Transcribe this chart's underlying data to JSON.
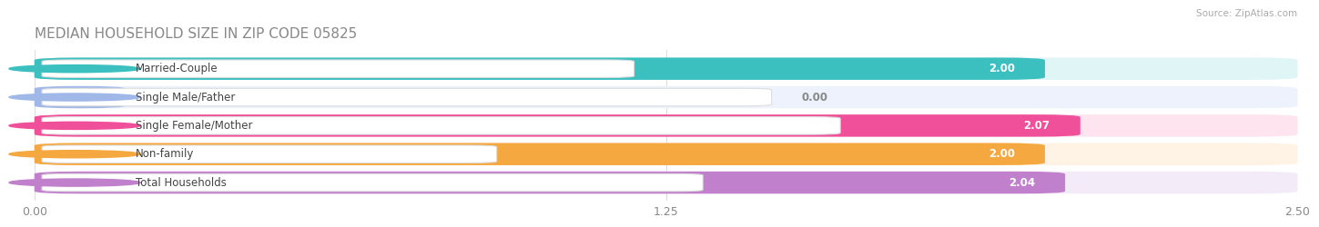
{
  "title": "MEDIAN HOUSEHOLD SIZE IN ZIP CODE 05825",
  "source": "Source: ZipAtlas.com",
  "categories": [
    "Married-Couple",
    "Single Male/Father",
    "Single Female/Mother",
    "Non-family",
    "Total Households"
  ],
  "values": [
    2.0,
    0.0,
    2.07,
    2.0,
    2.04
  ],
  "value_labels": [
    "2.00",
    "0.00",
    "2.07",
    "2.00",
    "2.04"
  ],
  "bar_colors": [
    "#3bbfbf",
    "#a0b8e8",
    "#f0509a",
    "#f5a840",
    "#c080cc"
  ],
  "bar_bg_colors": [
    "#e0f5f5",
    "#edf2fc",
    "#fde4ee",
    "#fef3e4",
    "#f3ecf8"
  ],
  "xlim_max": 2.5,
  "xticks": [
    0.0,
    1.25,
    2.5
  ],
  "xtick_labels": [
    "0.00",
    "1.25",
    "2.50"
  ],
  "title_fontsize": 11,
  "label_fontsize": 8.5,
  "value_fontsize": 8.5,
  "background_color": "#ffffff",
  "pill_bg": "#ffffff",
  "grid_color": "#dddddd",
  "value_label_inside_color": "#ffffff",
  "value_label_outside_color": "#888888",
  "title_color": "#888888",
  "source_color": "#aaaaaa",
  "label_text_color": "#444444"
}
